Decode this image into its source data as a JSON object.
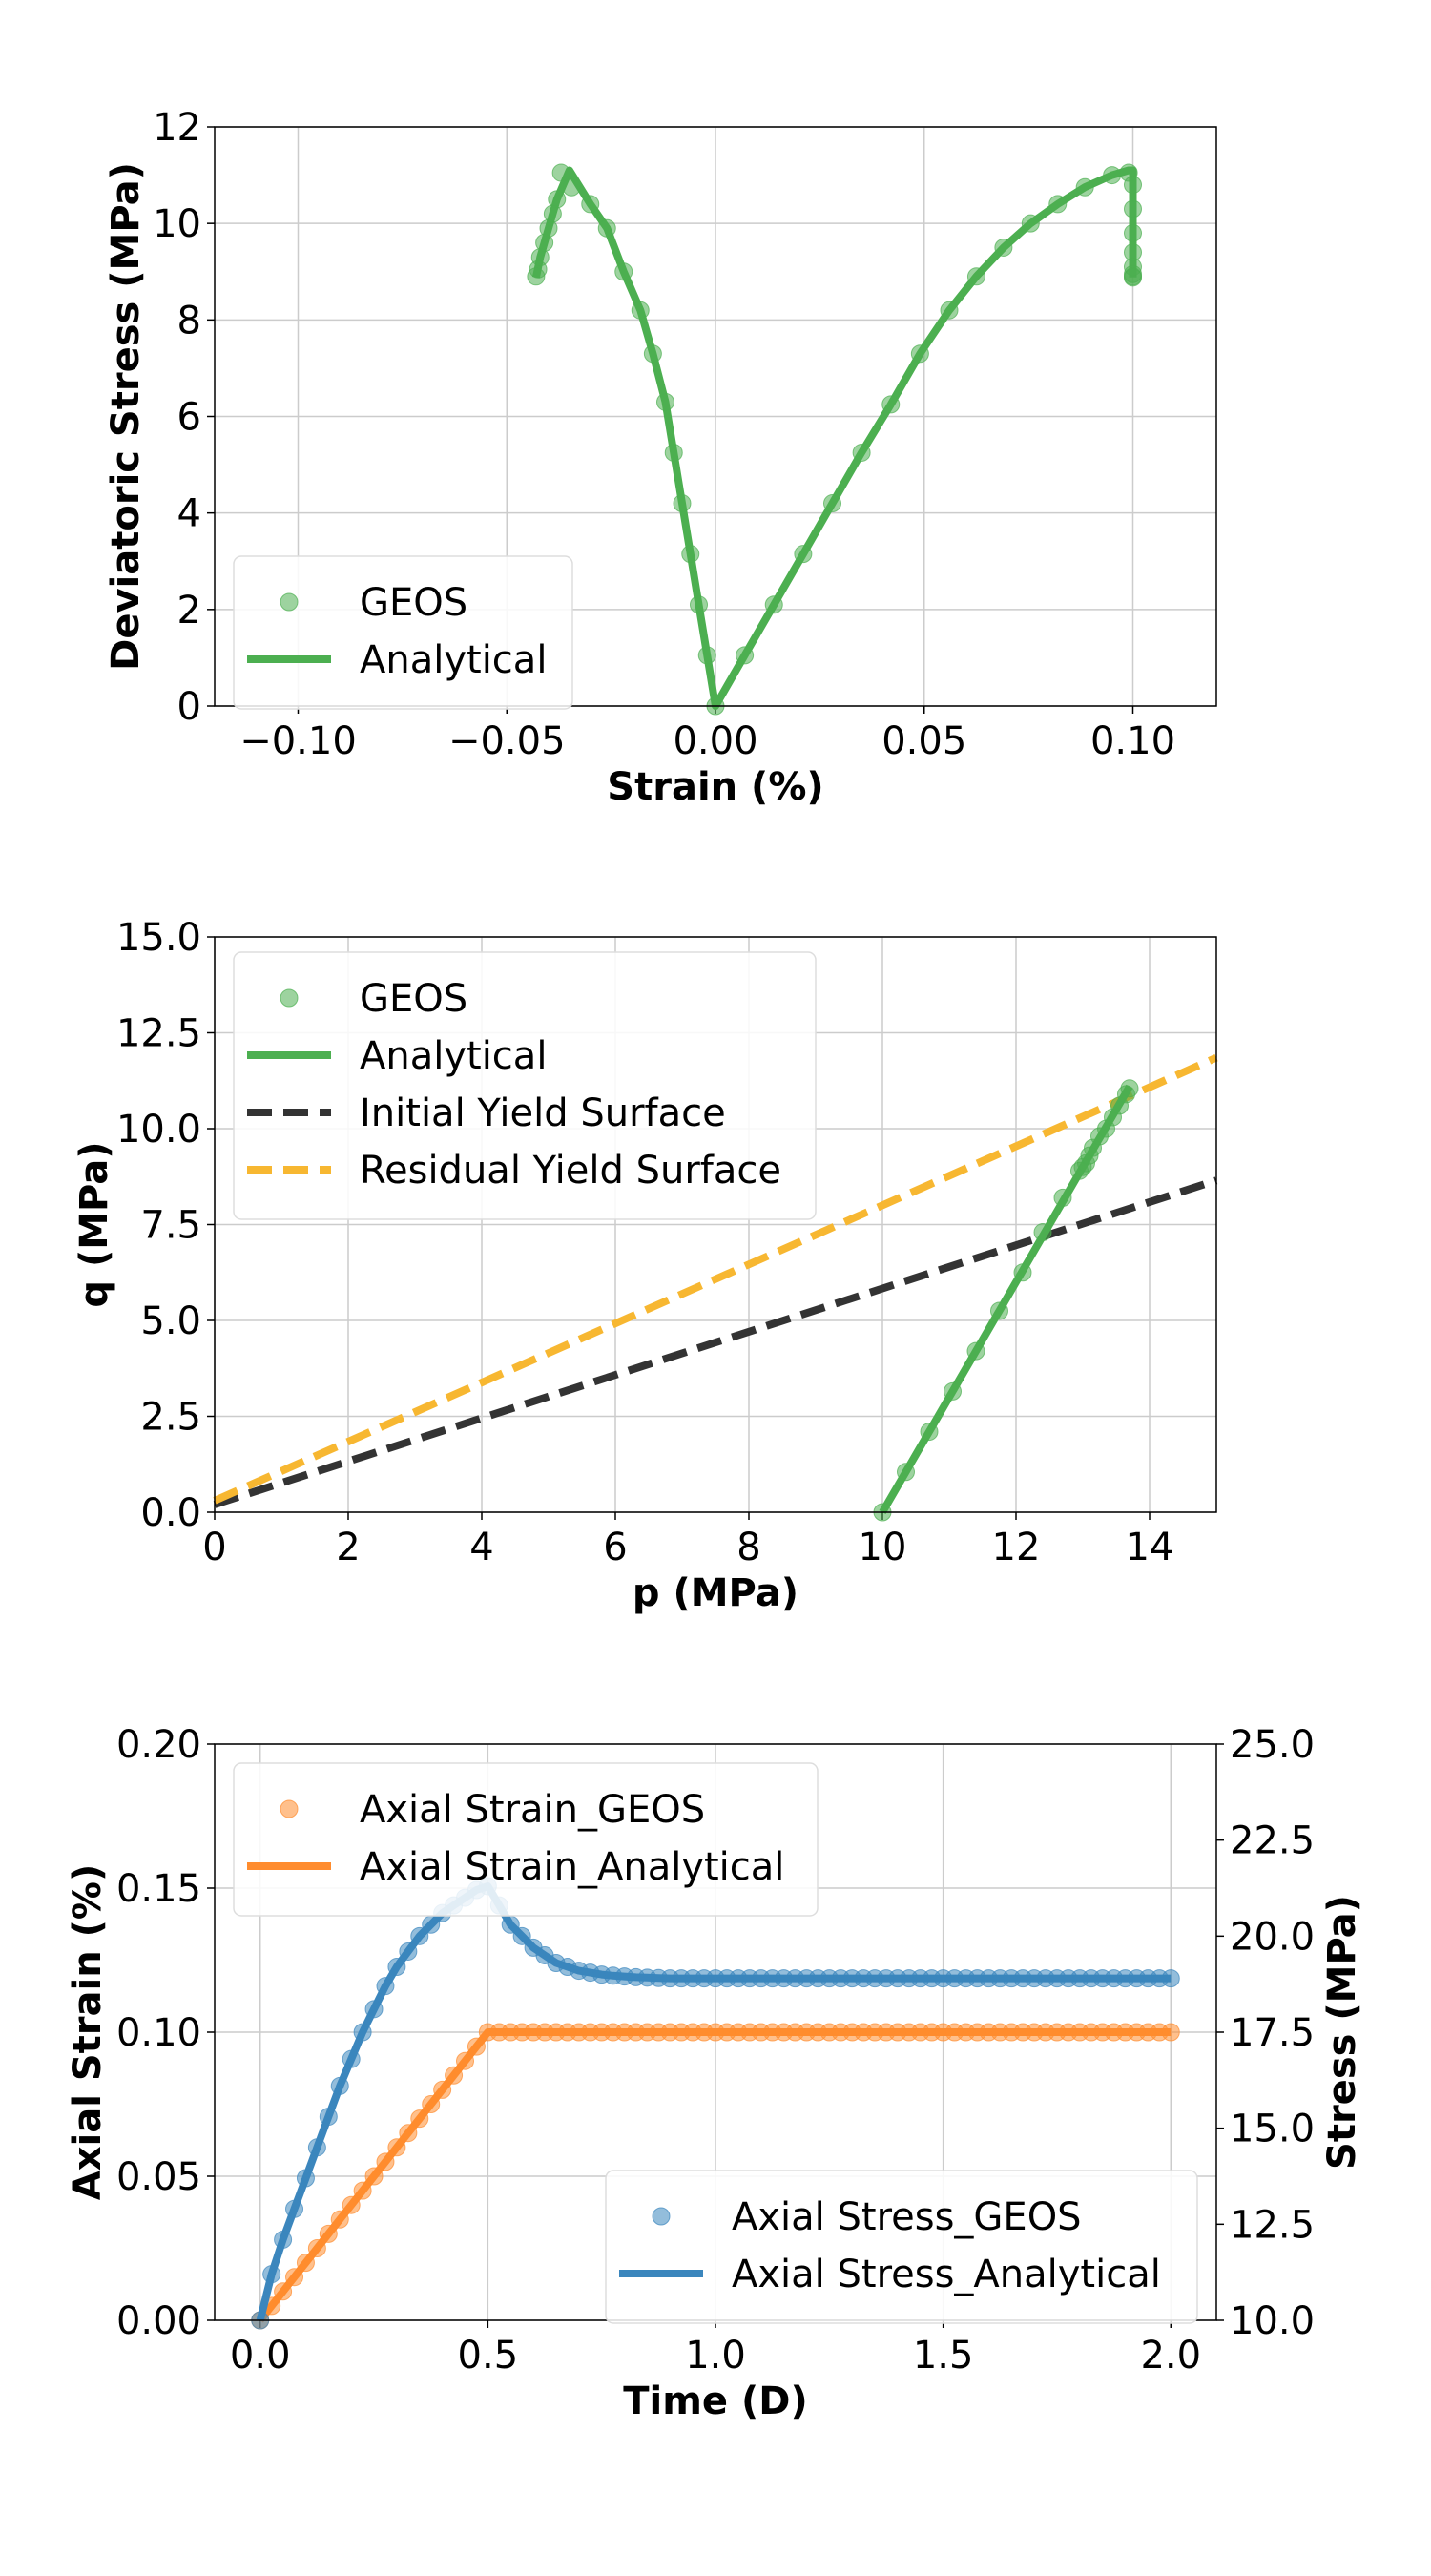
{
  "chart_data": [
    {
      "type": "line",
      "xlabel": "Strain (%)",
      "ylabel": "Deviatoric Stress (MPa)",
      "xlim": [
        -0.12,
        0.12
      ],
      "ylim": [
        0,
        12
      ],
      "xticks": [
        -0.1,
        -0.05,
        0.0,
        0.05,
        0.1
      ],
      "xtick_labels": [
        "−0.10",
        "−0.05",
        "0.00",
        "0.05",
        "0.10"
      ],
      "yticks": [
        0,
        2,
        4,
        6,
        8,
        10,
        12
      ],
      "ytick_labels": [
        "0",
        "2",
        "4",
        "6",
        "8",
        "10",
        "12"
      ],
      "grid": true,
      "legend_position": "lower-left",
      "colors": {
        "green": "#4caf50"
      },
      "series": [
        {
          "name": "GEOS",
          "style": "markers",
          "x": [
            0.0,
            0.007,
            0.014,
            0.021,
            0.028,
            0.035,
            0.042,
            0.049,
            0.056,
            0.0625,
            0.069,
            0.0755,
            0.082,
            0.0885,
            0.095,
            0.099,
            0.1,
            0.1,
            0.1,
            0.1,
            0.1,
            0.1,
            0.1,
            0.1,
            -0.002,
            -0.004,
            -0.006,
            -0.008,
            -0.01,
            -0.012,
            -0.015,
            -0.018,
            -0.022,
            -0.026,
            -0.03,
            -0.0345,
            -0.037,
            -0.038,
            -0.039,
            -0.04,
            -0.041,
            -0.042,
            -0.0425,
            -0.043
          ],
          "y": [
            0.0,
            1.05,
            2.1,
            3.15,
            4.2,
            5.25,
            6.25,
            7.3,
            8.2,
            8.9,
            9.5,
            10.0,
            10.4,
            10.75,
            11.0,
            11.05,
            10.8,
            10.3,
            9.8,
            9.4,
            9.1,
            8.95,
            8.9,
            8.88,
            1.05,
            2.1,
            3.15,
            4.2,
            5.25,
            6.3,
            7.3,
            8.2,
            9.0,
            9.9,
            10.4,
            10.75,
            11.05,
            10.5,
            10.2,
            9.9,
            9.6,
            9.3,
            9.05,
            8.9
          ]
        },
        {
          "name": "Analytical",
          "style": "line",
          "x": [
            -0.043,
            -0.042,
            -0.04,
            -0.038,
            -0.035,
            -0.03,
            -0.026,
            -0.022,
            -0.018,
            -0.015,
            -0.012,
            -0.008,
            -0.004,
            0.0,
            0.007,
            0.014,
            0.021,
            0.028,
            0.035,
            0.042,
            0.049,
            0.056,
            0.0625,
            0.069,
            0.0755,
            0.082,
            0.0885,
            0.095,
            0.099,
            0.1,
            0.1
          ],
          "y": [
            8.88,
            9.3,
            9.9,
            10.5,
            11.1,
            10.4,
            9.9,
            9.0,
            8.2,
            7.3,
            6.3,
            4.2,
            2.1,
            0.0,
            1.05,
            2.1,
            3.15,
            4.2,
            5.25,
            6.25,
            7.3,
            8.2,
            8.9,
            9.5,
            10.0,
            10.4,
            10.75,
            11.0,
            11.1,
            11.1,
            8.88
          ]
        }
      ]
    },
    {
      "type": "line",
      "xlabel": "p (MPa)",
      "ylabel": "q (MPa)",
      "xlim": [
        0,
        15
      ],
      "ylim": [
        0,
        15
      ],
      "xticks": [
        0,
        2,
        4,
        6,
        8,
        10,
        12,
        14
      ],
      "xtick_labels": [
        "0",
        "2",
        "4",
        "6",
        "8",
        "10",
        "12",
        "14"
      ],
      "yticks": [
        0,
        2.5,
        5,
        7.5,
        10,
        12.5,
        15
      ],
      "ytick_labels": [
        "0.0",
        "2.5",
        "5.0",
        "7.5",
        "10.0",
        "12.5",
        "15.0"
      ],
      "grid": true,
      "legend_position": "upper-left",
      "colors": {
        "green": "#4caf50",
        "dark": "#333333",
        "orange": "#f7b731"
      },
      "series": [
        {
          "name": "GEOS",
          "style": "markers",
          "x": [
            10.0,
            10.35,
            10.7,
            11.05,
            11.4,
            11.75,
            12.1,
            12.4,
            12.7,
            12.95,
            13.0,
            13.05,
            13.1,
            13.15,
            13.25,
            13.35,
            13.45,
            13.55,
            13.65,
            13.7
          ],
          "y": [
            0.0,
            1.05,
            2.1,
            3.15,
            4.2,
            5.25,
            6.25,
            7.3,
            8.2,
            8.9,
            9.0,
            9.1,
            9.3,
            9.5,
            9.8,
            10.0,
            10.3,
            10.6,
            10.9,
            11.05
          ]
        },
        {
          "name": "Analytical",
          "style": "line",
          "x": [
            10.0,
            13.7
          ],
          "y": [
            0.0,
            11.1
          ]
        },
        {
          "name": "Initial Yield Surface",
          "style": "dashed",
          "x": [
            0,
            15
          ],
          "y": [
            0.2,
            8.65
          ]
        },
        {
          "name": "Residual Yield Surface",
          "style": "dashed",
          "x": [
            0,
            15
          ],
          "y": [
            0.3,
            11.85
          ]
        }
      ]
    },
    {
      "type": "line",
      "xlabel": "Time (D)",
      "ylabel": "Axial Strain (%)",
      "ylabel_right": "Stress (MPa)",
      "xlim": [
        -0.1,
        2.1
      ],
      "ylim": [
        0,
        0.2
      ],
      "ylim_right": [
        10,
        25
      ],
      "xticks": [
        0.0,
        0.5,
        1.0,
        1.5,
        2.0
      ],
      "xtick_labels": [
        "0.0",
        "0.5",
        "1.0",
        "1.5",
        "2.0"
      ],
      "yticks": [
        0,
        0.05,
        0.1,
        0.15,
        0.2
      ],
      "ytick_labels": [
        "0.00",
        "0.05",
        "0.10",
        "0.15",
        "0.20"
      ],
      "yticks_right": [
        10,
        12.5,
        15,
        17.5,
        20,
        22.5,
        25
      ],
      "ytick_labels_right": [
        "10.0",
        "12.5",
        "15.0",
        "17.5",
        "20.0",
        "22.5",
        "25.0"
      ],
      "grid": true,
      "legend_position": "upper-left and lower-right",
      "colors": {
        "orange": "#ff8c2e",
        "blue": "#3b86bd"
      },
      "strain_series": [
        {
          "name": "Axial Strain_GEOS",
          "style": "markers"
        },
        {
          "name": "Axial Strain_Analytical",
          "style": "line"
        }
      ],
      "stress_series": [
        {
          "name": "Axial Stress_GEOS",
          "style": "markers"
        },
        {
          "name": "Axial Stress_Analytical",
          "style": "line"
        }
      ],
      "time": [
        0.0,
        0.025,
        0.05,
        0.075,
        0.1,
        0.125,
        0.15,
        0.175,
        0.2,
        0.225,
        0.25,
        0.275,
        0.3,
        0.325,
        0.35,
        0.375,
        0.4,
        0.425,
        0.45,
        0.475,
        0.5,
        0.525,
        0.55,
        0.575,
        0.6,
        0.625,
        0.65,
        0.675,
        0.7,
        0.725,
        0.75,
        0.775,
        0.8,
        0.825,
        0.85,
        0.875,
        0.9,
        0.925,
        0.95,
        0.975,
        1.0,
        1.025,
        1.05,
        1.075,
        1.1,
        1.125,
        1.15,
        1.175,
        1.2,
        1.225,
        1.25,
        1.275,
        1.3,
        1.325,
        1.35,
        1.375,
        1.4,
        1.425,
        1.45,
        1.475,
        1.5,
        1.525,
        1.55,
        1.575,
        1.6,
        1.625,
        1.65,
        1.675,
        1.7,
        1.725,
        1.75,
        1.775,
        1.8,
        1.825,
        1.85,
        1.875,
        1.9,
        1.925,
        1.95,
        1.975,
        2.0
      ],
      "strain": [
        0.0,
        0.005,
        0.01,
        0.015,
        0.02,
        0.025,
        0.03,
        0.035,
        0.04,
        0.045,
        0.05,
        0.055,
        0.06,
        0.065,
        0.07,
        0.075,
        0.08,
        0.085,
        0.09,
        0.095,
        0.1,
        0.1,
        0.1,
        0.1,
        0.1,
        0.1,
        0.1,
        0.1,
        0.1,
        0.1,
        0.1,
        0.1,
        0.1,
        0.1,
        0.1,
        0.1,
        0.1,
        0.1,
        0.1,
        0.1,
        0.1,
        0.1,
        0.1,
        0.1,
        0.1,
        0.1,
        0.1,
        0.1,
        0.1,
        0.1,
        0.1,
        0.1,
        0.1,
        0.1,
        0.1,
        0.1,
        0.1,
        0.1,
        0.1,
        0.1,
        0.1,
        0.1,
        0.1,
        0.1,
        0.1,
        0.1,
        0.1,
        0.1,
        0.1,
        0.1,
        0.1,
        0.1,
        0.1,
        0.1,
        0.1,
        0.1,
        0.1,
        0.1,
        0.1,
        0.1,
        0.1
      ],
      "stress": [
        10.0,
        11.2,
        12.1,
        12.9,
        13.7,
        14.5,
        15.3,
        16.1,
        16.8,
        17.5,
        18.1,
        18.7,
        19.2,
        19.6,
        20.0,
        20.3,
        20.6,
        20.8,
        21.0,
        21.2,
        21.3,
        20.8,
        20.3,
        20.0,
        19.7,
        19.5,
        19.3,
        19.2,
        19.1,
        19.05,
        19.0,
        18.97,
        18.95,
        18.93,
        18.92,
        18.91,
        18.9,
        18.9,
        18.9,
        18.9,
        18.9,
        18.9,
        18.9,
        18.9,
        18.9,
        18.9,
        18.9,
        18.9,
        18.9,
        18.9,
        18.9,
        18.9,
        18.9,
        18.9,
        18.9,
        18.9,
        18.9,
        18.9,
        18.9,
        18.9,
        18.9,
        18.9,
        18.9,
        18.9,
        18.9,
        18.9,
        18.9,
        18.9,
        18.9,
        18.9,
        18.9,
        18.9,
        18.9,
        18.9,
        18.9,
        18.9,
        18.9,
        18.9,
        18.9,
        18.9,
        18.9
      ]
    }
  ]
}
